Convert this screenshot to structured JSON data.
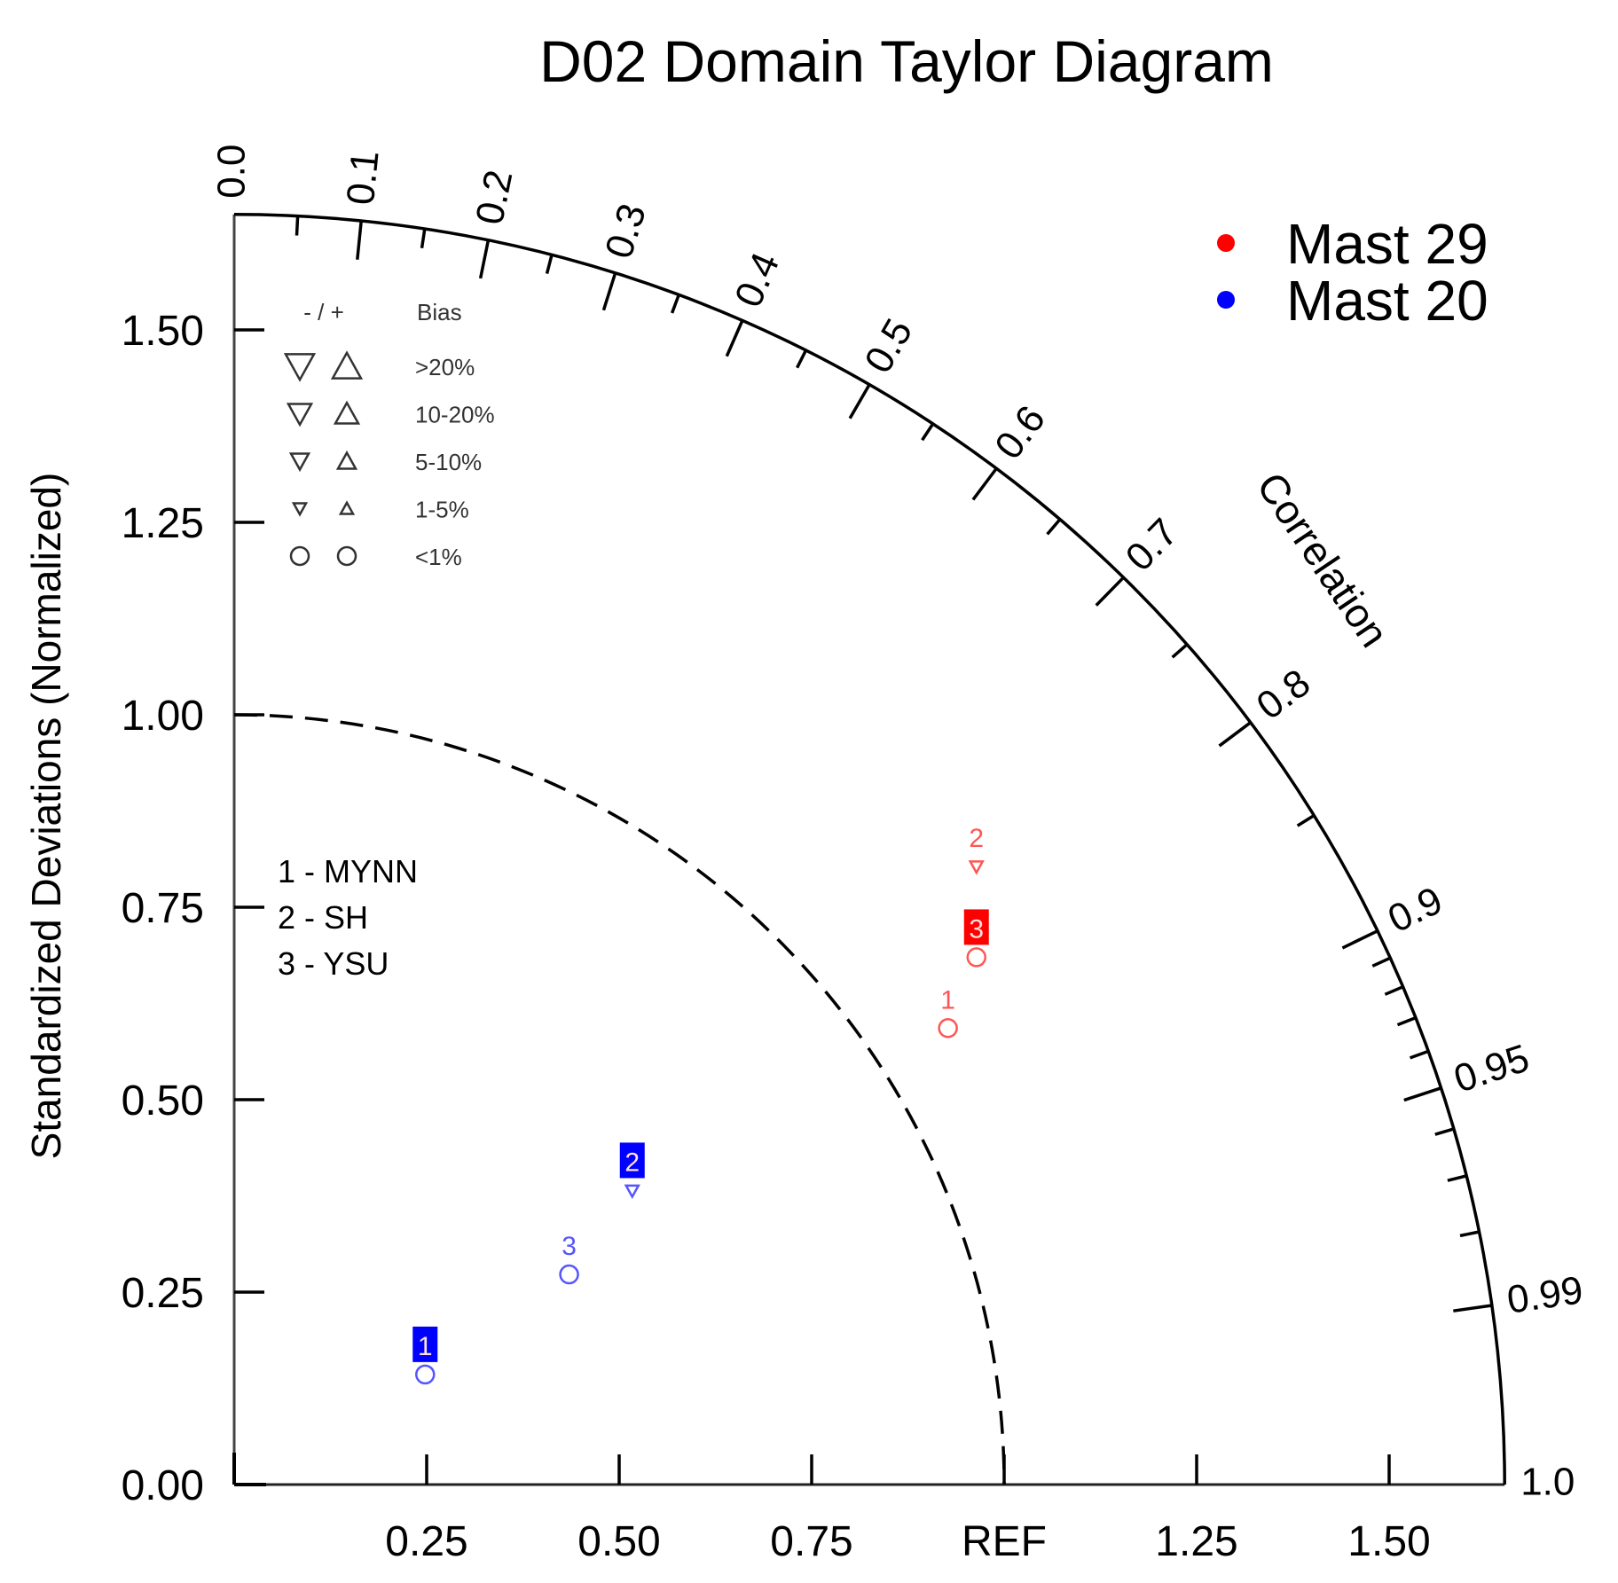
{
  "chart_data": {
    "type": "taylor",
    "title": "D02 Domain Taylor Diagram",
    "xlabel": "",
    "ylabel": "Standardized Deviations (Normalized)",
    "angular_label": "Correlation",
    "std_ticks": [
      0.25,
      0.5,
      0.75,
      1.0,
      1.25,
      1.5
    ],
    "x_tick_labels": [
      "0.25",
      "0.50",
      "0.75",
      "REF",
      "1.25",
      "1.50"
    ],
    "y_tick_labels": [
      "0.00",
      "0.25",
      "0.50",
      "0.75",
      "1.00",
      "1.25",
      "1.50"
    ],
    "std_max": 1.65,
    "ref_std": 1.0,
    "correlation_major_ticks": [
      0.0,
      0.1,
      0.2,
      0.3,
      0.4,
      0.5,
      0.6,
      0.7,
      0.8,
      0.9,
      0.95,
      0.99,
      1.0
    ],
    "correlation_labels": [
      "0.0",
      "0.1",
      "0.2",
      "0.3",
      "0.4",
      "0.5",
      "0.6",
      "0.7",
      "0.8",
      "0.9",
      "0.95",
      "0.99",
      "1.0"
    ],
    "correlation_minor_ticks": [
      0.05,
      0.15,
      0.25,
      0.35,
      0.45,
      0.55,
      0.65,
      0.75,
      0.85,
      0.91,
      0.92,
      0.93,
      0.94,
      0.96,
      0.97,
      0.98
    ],
    "series": [
      {
        "name": "Mast 29",
        "color": "#ff0000",
        "points": [
          {
            "id": "1",
            "model": "MYNN",
            "x": 0.927,
            "y": 0.593,
            "std": 1.1,
            "corr": 0.84,
            "marker": "circle",
            "bias": "<1%",
            "boxed": false
          },
          {
            "id": "2",
            "model": "SH",
            "x": 0.964,
            "y": 0.803,
            "std": 1.25,
            "corr": 0.77,
            "marker": "down-triangle",
            "bias": "-1-5%",
            "boxed": false
          },
          {
            "id": "3",
            "model": "YSU",
            "x": 0.964,
            "y": 0.685,
            "std": 1.18,
            "corr": 0.82,
            "marker": "circle",
            "bias": "<1%",
            "boxed": true
          }
        ]
      },
      {
        "name": "Mast 20",
        "color": "#0000ff",
        "points": [
          {
            "id": "1",
            "model": "MYNN",
            "x": 0.248,
            "y": 0.143,
            "std": 0.29,
            "corr": 0.87,
            "marker": "circle",
            "bias": "<1%",
            "boxed": true
          },
          {
            "id": "2",
            "model": "SH",
            "x": 0.517,
            "y": 0.382,
            "std": 0.64,
            "corr": 0.8,
            "marker": "down-triangle",
            "bias": "-1-5%",
            "boxed": true
          },
          {
            "id": "3",
            "model": "YSU",
            "x": 0.435,
            "y": 0.273,
            "std": 0.51,
            "corr": 0.85,
            "marker": "circle",
            "bias": "<1%",
            "boxed": false
          }
        ]
      }
    ],
    "legend": {
      "position": "upper-right",
      "entries": [
        {
          "label": "Mast 29",
          "color": "#ff0000"
        },
        {
          "label": "Mast 20",
          "color": "#0000ff"
        }
      ]
    },
    "bias_legend": {
      "header_sign": "- / +",
      "header_label": "Bias",
      "rows": [
        {
          "label": ">20%",
          "size": 16
        },
        {
          "label": "10-20%",
          "size": 13
        },
        {
          "label": "5-10%",
          "size": 10
        },
        {
          "label": "1-5%",
          "size": 7
        },
        {
          "label": "<1%",
          "size": 0
        }
      ]
    },
    "model_legend": [
      "1 - MYNN",
      "2 - SH",
      "3 - YSU"
    ],
    "grid": false
  }
}
